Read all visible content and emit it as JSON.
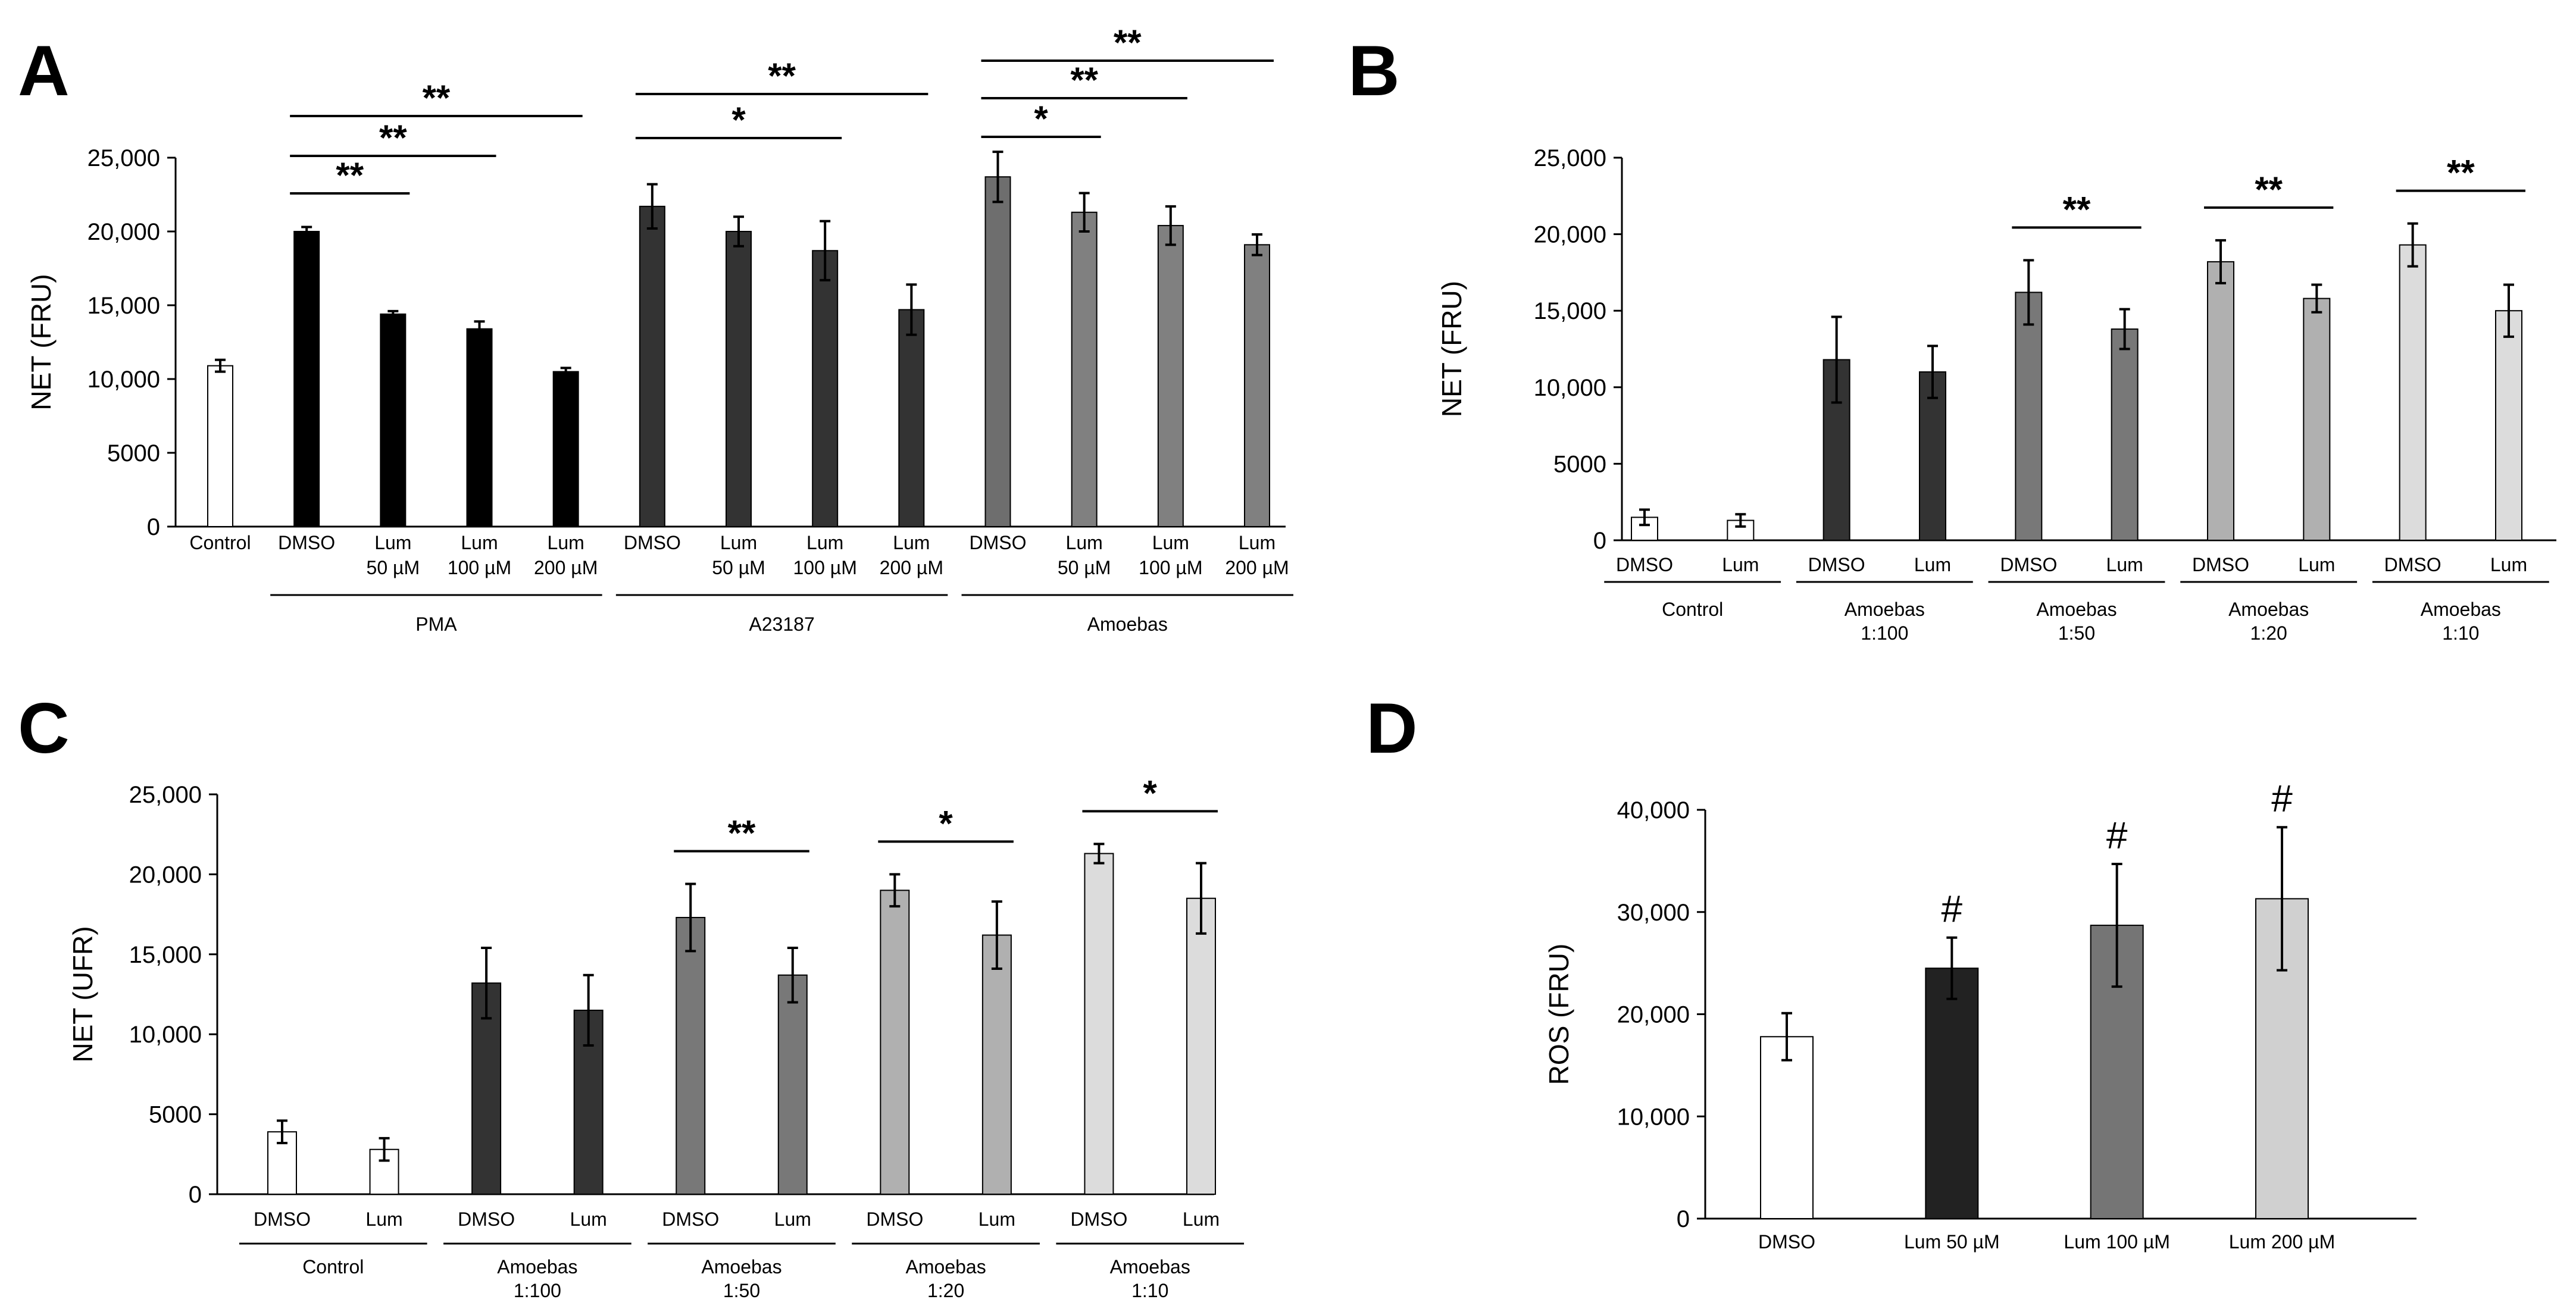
{
  "figure": {
    "panels": [
      {
        "id": "A",
        "type": "bar",
        "letter": "A",
        "ylabel": "NET (FRU)",
        "ylim": [
          0,
          25000
        ],
        "yticks": [
          0,
          5000,
          10000,
          15000,
          20000,
          25000
        ],
        "ytick_labels": [
          "0",
          "5000",
          "10,000",
          "15,000",
          "20,000",
          "25,000"
        ],
        "bars": [
          {
            "label": [
              "Control"
            ],
            "value": 10900,
            "error": 400,
            "color": "#ffffff"
          },
          {
            "label": [
              "DMSO"
            ],
            "value": 20000,
            "error": 300,
            "color": "#000000"
          },
          {
            "label": [
              "Lum",
              "50 µM"
            ],
            "value": 14400,
            "error": 200,
            "color": "#000000"
          },
          {
            "label": [
              "Lum",
              "100 µM"
            ],
            "value": 13400,
            "error": 500,
            "color": "#000000"
          },
          {
            "label": [
              "Lum",
              "200 µM"
            ],
            "value": 10500,
            "error": 250,
            "color": "#000000"
          },
          {
            "label": [
              "DMSO"
            ],
            "value": 21700,
            "error": 1500,
            "color": "#333333"
          },
          {
            "label": [
              "Lum",
              "50 µM"
            ],
            "value": 20000,
            "error": 1000,
            "color": "#333333"
          },
          {
            "label": [
              "Lum",
              "100 µM"
            ],
            "value": 18700,
            "error": 2000,
            "color": "#333333"
          },
          {
            "label": [
              "Lum",
              "200 µM"
            ],
            "value": 14700,
            "error": 1700,
            "color": "#333333"
          },
          {
            "label": [
              "DMSO"
            ],
            "value": 23700,
            "error": 1700,
            "color": "#6e6e6e"
          },
          {
            "label": [
              "Lum",
              "50 µM"
            ],
            "value": 21300,
            "error": 1300,
            "color": "#808080"
          },
          {
            "label": [
              "Lum",
              "100 µM"
            ],
            "value": 20400,
            "error": 1300,
            "color": "#808080"
          },
          {
            "label": [
              "Lum",
              "200 µM"
            ],
            "value": 19100,
            "error": 700,
            "color": "#808080"
          }
        ],
        "groups": [
          {
            "name": "PMA",
            "start": 1,
            "end": 4
          },
          {
            "name": "A23187",
            "start": 5,
            "end": 8
          },
          {
            "name": "Amoebas",
            "start": 9,
            "end": 12
          }
        ],
        "significance": [
          {
            "from": 1,
            "to": 2,
            "label": "**",
            "level": 0
          },
          {
            "from": 1,
            "to": 3,
            "label": "**",
            "level": 1
          },
          {
            "from": 1,
            "to": 4,
            "label": "**",
            "level": 2
          },
          {
            "from": 5,
            "to": 7,
            "label": "*",
            "level": 0
          },
          {
            "from": 5,
            "to": 8,
            "label": "**",
            "level": 1
          },
          {
            "from": 9,
            "to": 10,
            "label": "*",
            "level": 0
          },
          {
            "from": 9,
            "to": 11,
            "label": "**",
            "level": 1
          },
          {
            "from": 9,
            "to": 12,
            "label": "**",
            "level": 2
          }
        ]
      },
      {
        "id": "B",
        "type": "bar",
        "letter": "B",
        "ylabel": "NET (FRU)",
        "ylim": [
          0,
          25000
        ],
        "yticks": [
          0,
          5000,
          10000,
          15000,
          20000,
          25000
        ],
        "ytick_labels": [
          "0",
          "5000",
          "10,000",
          "15,000",
          "20,000",
          "25,000"
        ],
        "bars": [
          {
            "label": [
              "DMSO"
            ],
            "value": 1500,
            "error": 500,
            "color": "#ffffff"
          },
          {
            "label": [
              "Lum"
            ],
            "value": 1300,
            "error": 400,
            "color": "#ffffff"
          },
          {
            "label": [
              "DMSO"
            ],
            "value": 11800,
            "error": 2800,
            "color": "#333333"
          },
          {
            "label": [
              "Lum"
            ],
            "value": 11000,
            "error": 1700,
            "color": "#333333"
          },
          {
            "label": [
              "DMSO"
            ],
            "value": 16200,
            "error": 2100,
            "color": "#787878"
          },
          {
            "label": [
              "Lum"
            ],
            "value": 13800,
            "error": 1300,
            "color": "#787878"
          },
          {
            "label": [
              "DMSO"
            ],
            "value": 18200,
            "error": 1400,
            "color": "#b0b0b0"
          },
          {
            "label": [
              "Lum"
            ],
            "value": 15800,
            "error": 900,
            "color": "#b0b0b0"
          },
          {
            "label": [
              "DMSO"
            ],
            "value": 19300,
            "error": 1400,
            "color": "#dcdcdc"
          },
          {
            "label": [
              "Lum"
            ],
            "value": 15000,
            "error": 1700,
            "color": "#dcdcdc"
          }
        ],
        "groups": [
          {
            "name": [
              "Control"
            ],
            "start": 0,
            "end": 1
          },
          {
            "name": [
              "Amoebas",
              "1:100"
            ],
            "start": 2,
            "end": 3
          },
          {
            "name": [
              "Amoebas",
              "1:50"
            ],
            "start": 4,
            "end": 5
          },
          {
            "name": [
              "Amoebas",
              "1:20"
            ],
            "start": 6,
            "end": 7
          },
          {
            "name": [
              "Amoebas",
              "1:10"
            ],
            "start": 8,
            "end": 9
          }
        ],
        "significance": [
          {
            "from": 4,
            "to": 5,
            "label": "**",
            "level": 0
          },
          {
            "from": 6,
            "to": 7,
            "label": "**",
            "level": 0
          },
          {
            "from": 8,
            "to": 9,
            "label": "**",
            "level": 0
          }
        ]
      },
      {
        "id": "C",
        "type": "bar",
        "letter": "C",
        "ylabel": "NET (UFR)",
        "ylim": [
          0,
          25000
        ],
        "yticks": [
          0,
          5000,
          10000,
          15000,
          20000,
          25000
        ],
        "ytick_labels": [
          "0",
          "5000",
          "10,000",
          "15,000",
          "20,000",
          "25,000"
        ],
        "bars": [
          {
            "label": [
              "DMSO"
            ],
            "value": 3900,
            "error": 700,
            "color": "#ffffff"
          },
          {
            "label": [
              "Lum"
            ],
            "value": 2800,
            "error": 700,
            "color": "#ffffff"
          },
          {
            "label": [
              "DMSO"
            ],
            "value": 13200,
            "error": 2200,
            "color": "#333333"
          },
          {
            "label": [
              "Lum"
            ],
            "value": 11500,
            "error": 2200,
            "color": "#333333"
          },
          {
            "label": [
              "DMSO"
            ],
            "value": 17300,
            "error": 2100,
            "color": "#787878"
          },
          {
            "label": [
              "Lum"
            ],
            "value": 13700,
            "error": 1700,
            "color": "#787878"
          },
          {
            "label": [
              "DMSO"
            ],
            "value": 19000,
            "error": 1000,
            "color": "#b0b0b0"
          },
          {
            "label": [
              "Lum"
            ],
            "value": 16200,
            "error": 2100,
            "color": "#b0b0b0"
          },
          {
            "label": [
              "DMSO"
            ],
            "value": 21300,
            "error": 600,
            "color": "#dcdcdc"
          },
          {
            "label": [
              "Lum"
            ],
            "value": 18500,
            "error": 2200,
            "color": "#dcdcdc"
          }
        ],
        "groups": [
          {
            "name": [
              "Control"
            ],
            "start": 0,
            "end": 1
          },
          {
            "name": [
              "Amoebas",
              "1:100"
            ],
            "start": 2,
            "end": 3
          },
          {
            "name": [
              "Amoebas",
              "1:50"
            ],
            "start": 4,
            "end": 5
          },
          {
            "name": [
              "Amoebas",
              "1:20"
            ],
            "start": 6,
            "end": 7
          },
          {
            "name": [
              "Amoebas",
              "1:10"
            ],
            "start": 8,
            "end": 9
          }
        ],
        "significance": [
          {
            "from": 4,
            "to": 5,
            "label": "**",
            "level": 0
          },
          {
            "from": 6,
            "to": 7,
            "label": "*",
            "level": 0
          },
          {
            "from": 8,
            "to": 9,
            "label": "*",
            "level": 0
          }
        ]
      },
      {
        "id": "D",
        "type": "bar",
        "letter": "D",
        "ylabel": "ROS (FRU)",
        "ylim": [
          0,
          40000
        ],
        "yticks": [
          0,
          10000,
          20000,
          30000,
          40000
        ],
        "ytick_labels": [
          "0",
          "10,000",
          "20,000",
          "30,000",
          "40,000"
        ],
        "bars": [
          {
            "label": [
              "DMSO"
            ],
            "value": 17800,
            "error": 2300,
            "color": "#ffffff"
          },
          {
            "label": [
              "Lum 50 µM"
            ],
            "value": 24500,
            "error": 3000,
            "color": "#222222",
            "mark": "#"
          },
          {
            "label": [
              "Lum 100 µM"
            ],
            "value": 28700,
            "error": 6000,
            "color": "#757575",
            "mark": "#"
          },
          {
            "label": [
              "Lum 200 µM"
            ],
            "value": 31300,
            "error": 7000,
            "color": "#d0d0d0",
            "mark": "#"
          }
        ],
        "groups": [],
        "significance": []
      }
    ]
  }
}
